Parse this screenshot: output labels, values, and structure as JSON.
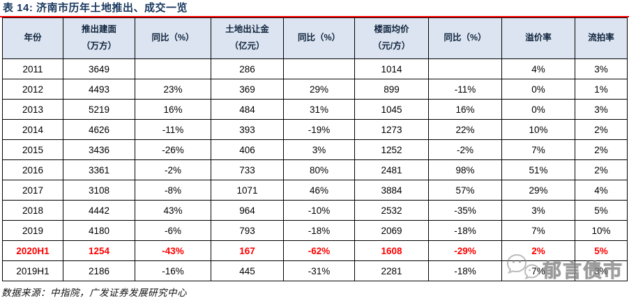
{
  "title": "表 14:  济南市历年土地推出、成交一览",
  "table": {
    "headers": [
      "年份",
      "推出建面\n（万方）",
      "同比（%）",
      "土地出让金\n（亿元）",
      "同比（%）",
      "楼面均价\n（元/方）",
      "同比（%）",
      "溢价率",
      "流拍率"
    ],
    "rows": [
      {
        "highlight": false,
        "cells": [
          "2011",
          "3649",
          "",
          "286",
          "",
          "1014",
          "",
          "4%",
          "3%"
        ]
      },
      {
        "highlight": false,
        "cells": [
          "2012",
          "4493",
          "23%",
          "369",
          "29%",
          "899",
          "-11%",
          "0%",
          "1%"
        ]
      },
      {
        "highlight": false,
        "cells": [
          "2013",
          "5219",
          "16%",
          "484",
          "31%",
          "1045",
          "16%",
          "0%",
          "3%"
        ]
      },
      {
        "highlight": false,
        "cells": [
          "2014",
          "4626",
          "-11%",
          "393",
          "-19%",
          "1273",
          "22%",
          "10%",
          "2%"
        ]
      },
      {
        "highlight": false,
        "cells": [
          "2015",
          "3436",
          "-26%",
          "406",
          "3%",
          "1252",
          "-2%",
          "7%",
          "2%"
        ]
      },
      {
        "highlight": false,
        "cells": [
          "2016",
          "3361",
          "-2%",
          "733",
          "80%",
          "2481",
          "98%",
          "51%",
          "2%"
        ]
      },
      {
        "highlight": false,
        "cells": [
          "2017",
          "3108",
          "-8%",
          "1071",
          "46%",
          "3884",
          "57%",
          "29%",
          "4%"
        ]
      },
      {
        "highlight": false,
        "cells": [
          "2018",
          "4442",
          "43%",
          "964",
          "-10%",
          "2532",
          "-35%",
          "3%",
          "5%"
        ]
      },
      {
        "highlight": false,
        "cells": [
          "2019",
          "4180",
          "-6%",
          "793",
          "-18%",
          "2069",
          "-18%",
          "7%",
          "10%"
        ]
      },
      {
        "highlight": true,
        "cells": [
          "2020H1",
          "1254",
          "-43%",
          "167",
          "-62%",
          "1608",
          "-29%",
          "2%",
          "5%"
        ]
      },
      {
        "highlight": false,
        "cells": [
          "2019H1",
          "2186",
          "-16%",
          "445",
          "-31%",
          "2281",
          "-18%",
          "7%",
          "3%"
        ]
      }
    ]
  },
  "footer": {
    "source": "数据来源：中指院，广发证券发展研究中心"
  },
  "watermark": {
    "text": "郁言债市"
  },
  "colors": {
    "title_navy": "#17375E",
    "accent_red": "#FE0000",
    "header_bg": "#DBE4F0",
    "highlight_text": "#FF0000",
    "border": "#000000"
  }
}
